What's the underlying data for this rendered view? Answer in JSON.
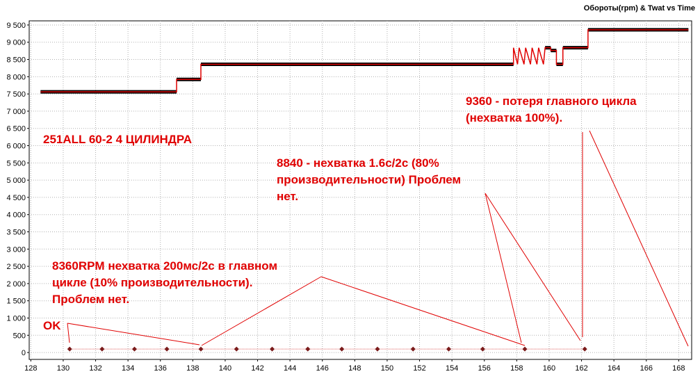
{
  "chart_data": {
    "type": "line",
    "title": "Обороты(rpm) & Twat vs Time",
    "xlim": [
      127.9,
      168.8
    ],
    "ylim": [
      -200,
      9620
    ],
    "xticks": [
      128,
      130,
      132,
      134,
      136,
      138,
      140,
      142,
      144,
      146,
      148,
      150,
      152,
      154,
      156,
      158,
      160,
      162,
      164,
      166,
      168
    ],
    "yticks": [
      0,
      500,
      {
        "value": 1000,
        "label": "1 000"
      },
      {
        "value": 1500,
        "label": "1 500"
      },
      {
        "value": 2000,
        "label": "2 000"
      },
      {
        "value": 2500,
        "label": "2 500"
      },
      {
        "value": 3000,
        "label": "3 000"
      },
      {
        "value": 3500,
        "label": "3 500"
      },
      {
        "value": 4000,
        "label": "4 000"
      },
      {
        "value": 4500,
        "label": "4 500"
      },
      {
        "value": 5000,
        "label": "5 000"
      },
      {
        "value": 5500,
        "label": "5 500"
      },
      {
        "value": 6000,
        "label": "6 000"
      },
      {
        "value": 6500,
        "label": "6 500"
      },
      {
        "value": 7000,
        "label": "7 000"
      },
      {
        "value": 7500,
        "label": "7 500"
      },
      {
        "value": 8000,
        "label": "8 000"
      },
      {
        "value": 8500,
        "label": "8 500"
      },
      {
        "value": 9000,
        "label": "9 000"
      },
      {
        "value": 9500,
        "label": "9 500"
      }
    ],
    "grid": true,
    "series": [
      {
        "color": "#e00000",
        "step_color": "#000000",
        "x": [
          128.6,
          137.0,
          137.0,
          138.5,
          138.5,
          157.8,
          157.8,
          158.05,
          158.15,
          158.45,
          158.55,
          158.85,
          158.95,
          159.25,
          159.35,
          159.65,
          159.75,
          160.1,
          160.1,
          160.45,
          160.45,
          160.85,
          160.85,
          162.4,
          162.4,
          168.6
        ],
        "values": [
          7560,
          7560,
          7920,
          7920,
          8360,
          8360,
          8840,
          8360,
          8840,
          8360,
          8840,
          8360,
          8840,
          8360,
          8840,
          8360,
          8840,
          8840,
          8760,
          8760,
          8360,
          8360,
          8840,
          8840,
          9360,
          9360
        ]
      },
      {
        "color": "#7a1a1a",
        "x": [
          130.4,
          132.4,
          134.4,
          136.4,
          138.5,
          140.7,
          142.9,
          145.1,
          147.2,
          149.4,
          151.6,
          153.8,
          155.9,
          158.5,
          162.2
        ],
        "values": [
          100,
          100,
          100,
          100,
          100,
          100,
          100,
          100,
          100,
          100,
          100,
          100,
          100,
          100,
          100
        ]
      }
    ],
    "annotations": [
      {
        "lines": [
          "OK"
        ]
      },
      {
        "lines": [
          "8360RPM нехватка 200мс/2с в главном",
          "цикле (10% производительности).",
          "Проблем нет."
        ]
      },
      {
        "lines": [
          "8840 - нехватка 1.6с/2с (80%",
          "производительности) Проблем",
          "нет."
        ]
      },
      {
        "lines": [
          "9360 - потеря главного цикла",
          "(нехватка 100%)."
        ]
      },
      {
        "lines": [
          "251ALL 60-2 4 ЦИЛИНДРА"
        ]
      }
    ]
  }
}
